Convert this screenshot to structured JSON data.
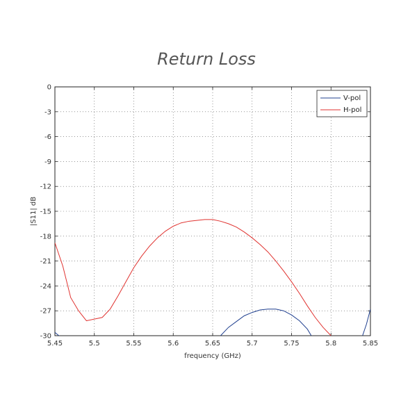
{
  "chart_data": {
    "type": "line",
    "title": "Return Loss",
    "xlabel": "frequency (GHz)",
    "ylabel": "|S11| dB",
    "xlim": [
      5.45,
      5.85
    ],
    "ylim": [
      -30,
      0
    ],
    "xticks": [
      "5.45",
      "5.5",
      "5.55",
      "5.6",
      "5.65",
      "5.7",
      "5.75",
      "5.8",
      "5.85"
    ],
    "yticks": [
      "0",
      "-3",
      "-6",
      "-9",
      "-12",
      "-15",
      "-18",
      "-21",
      "-24",
      "-27",
      "-30"
    ],
    "grid": true,
    "legend_position": "top-right",
    "series": [
      {
        "name": "V-pol",
        "color": "#1f3f8f",
        "x": [
          5.45,
          5.455,
          5.46
        ],
        "y": [
          -29.6,
          -30.0,
          -30.2
        ],
        "x2": [
          5.66,
          5.67,
          5.68,
          5.69,
          5.7,
          5.71,
          5.72,
          5.73,
          5.74,
          5.75,
          5.76,
          5.77,
          5.775
        ],
        "y2": [
          -30.0,
          -29.0,
          -28.3,
          -27.6,
          -27.2,
          -26.9,
          -26.8,
          -26.8,
          -27.0,
          -27.5,
          -28.2,
          -29.2,
          -30.0
        ],
        "x3": [
          5.84,
          5.845,
          5.85
        ],
        "y3": [
          -30.0,
          -28.6,
          -26.8
        ]
      },
      {
        "name": "H-pol",
        "color": "#e0322f",
        "x": [
          5.45,
          5.46,
          5.47,
          5.48,
          5.49,
          5.5,
          5.51,
          5.52,
          5.53,
          5.54,
          5.55,
          5.56,
          5.57,
          5.58,
          5.59,
          5.6,
          5.61,
          5.62,
          5.63,
          5.64,
          5.645,
          5.65,
          5.66,
          5.67,
          5.68,
          5.69,
          5.7,
          5.71,
          5.72,
          5.73,
          5.74,
          5.75,
          5.76,
          5.77,
          5.78,
          5.79,
          5.8
        ],
        "y": [
          -18.8,
          -21.6,
          -25.4,
          -27.0,
          -28.2,
          -28.0,
          -27.8,
          -26.8,
          -25.2,
          -23.5,
          -21.8,
          -20.4,
          -19.2,
          -18.2,
          -17.4,
          -16.8,
          -16.4,
          -16.2,
          -16.1,
          -16.0,
          -16.0,
          -16.0,
          -16.2,
          -16.5,
          -16.9,
          -17.5,
          -18.2,
          -19.0,
          -19.9,
          -21.0,
          -22.2,
          -23.5,
          -24.9,
          -26.4,
          -27.8,
          -29.0,
          -30.0
        ]
      }
    ]
  }
}
